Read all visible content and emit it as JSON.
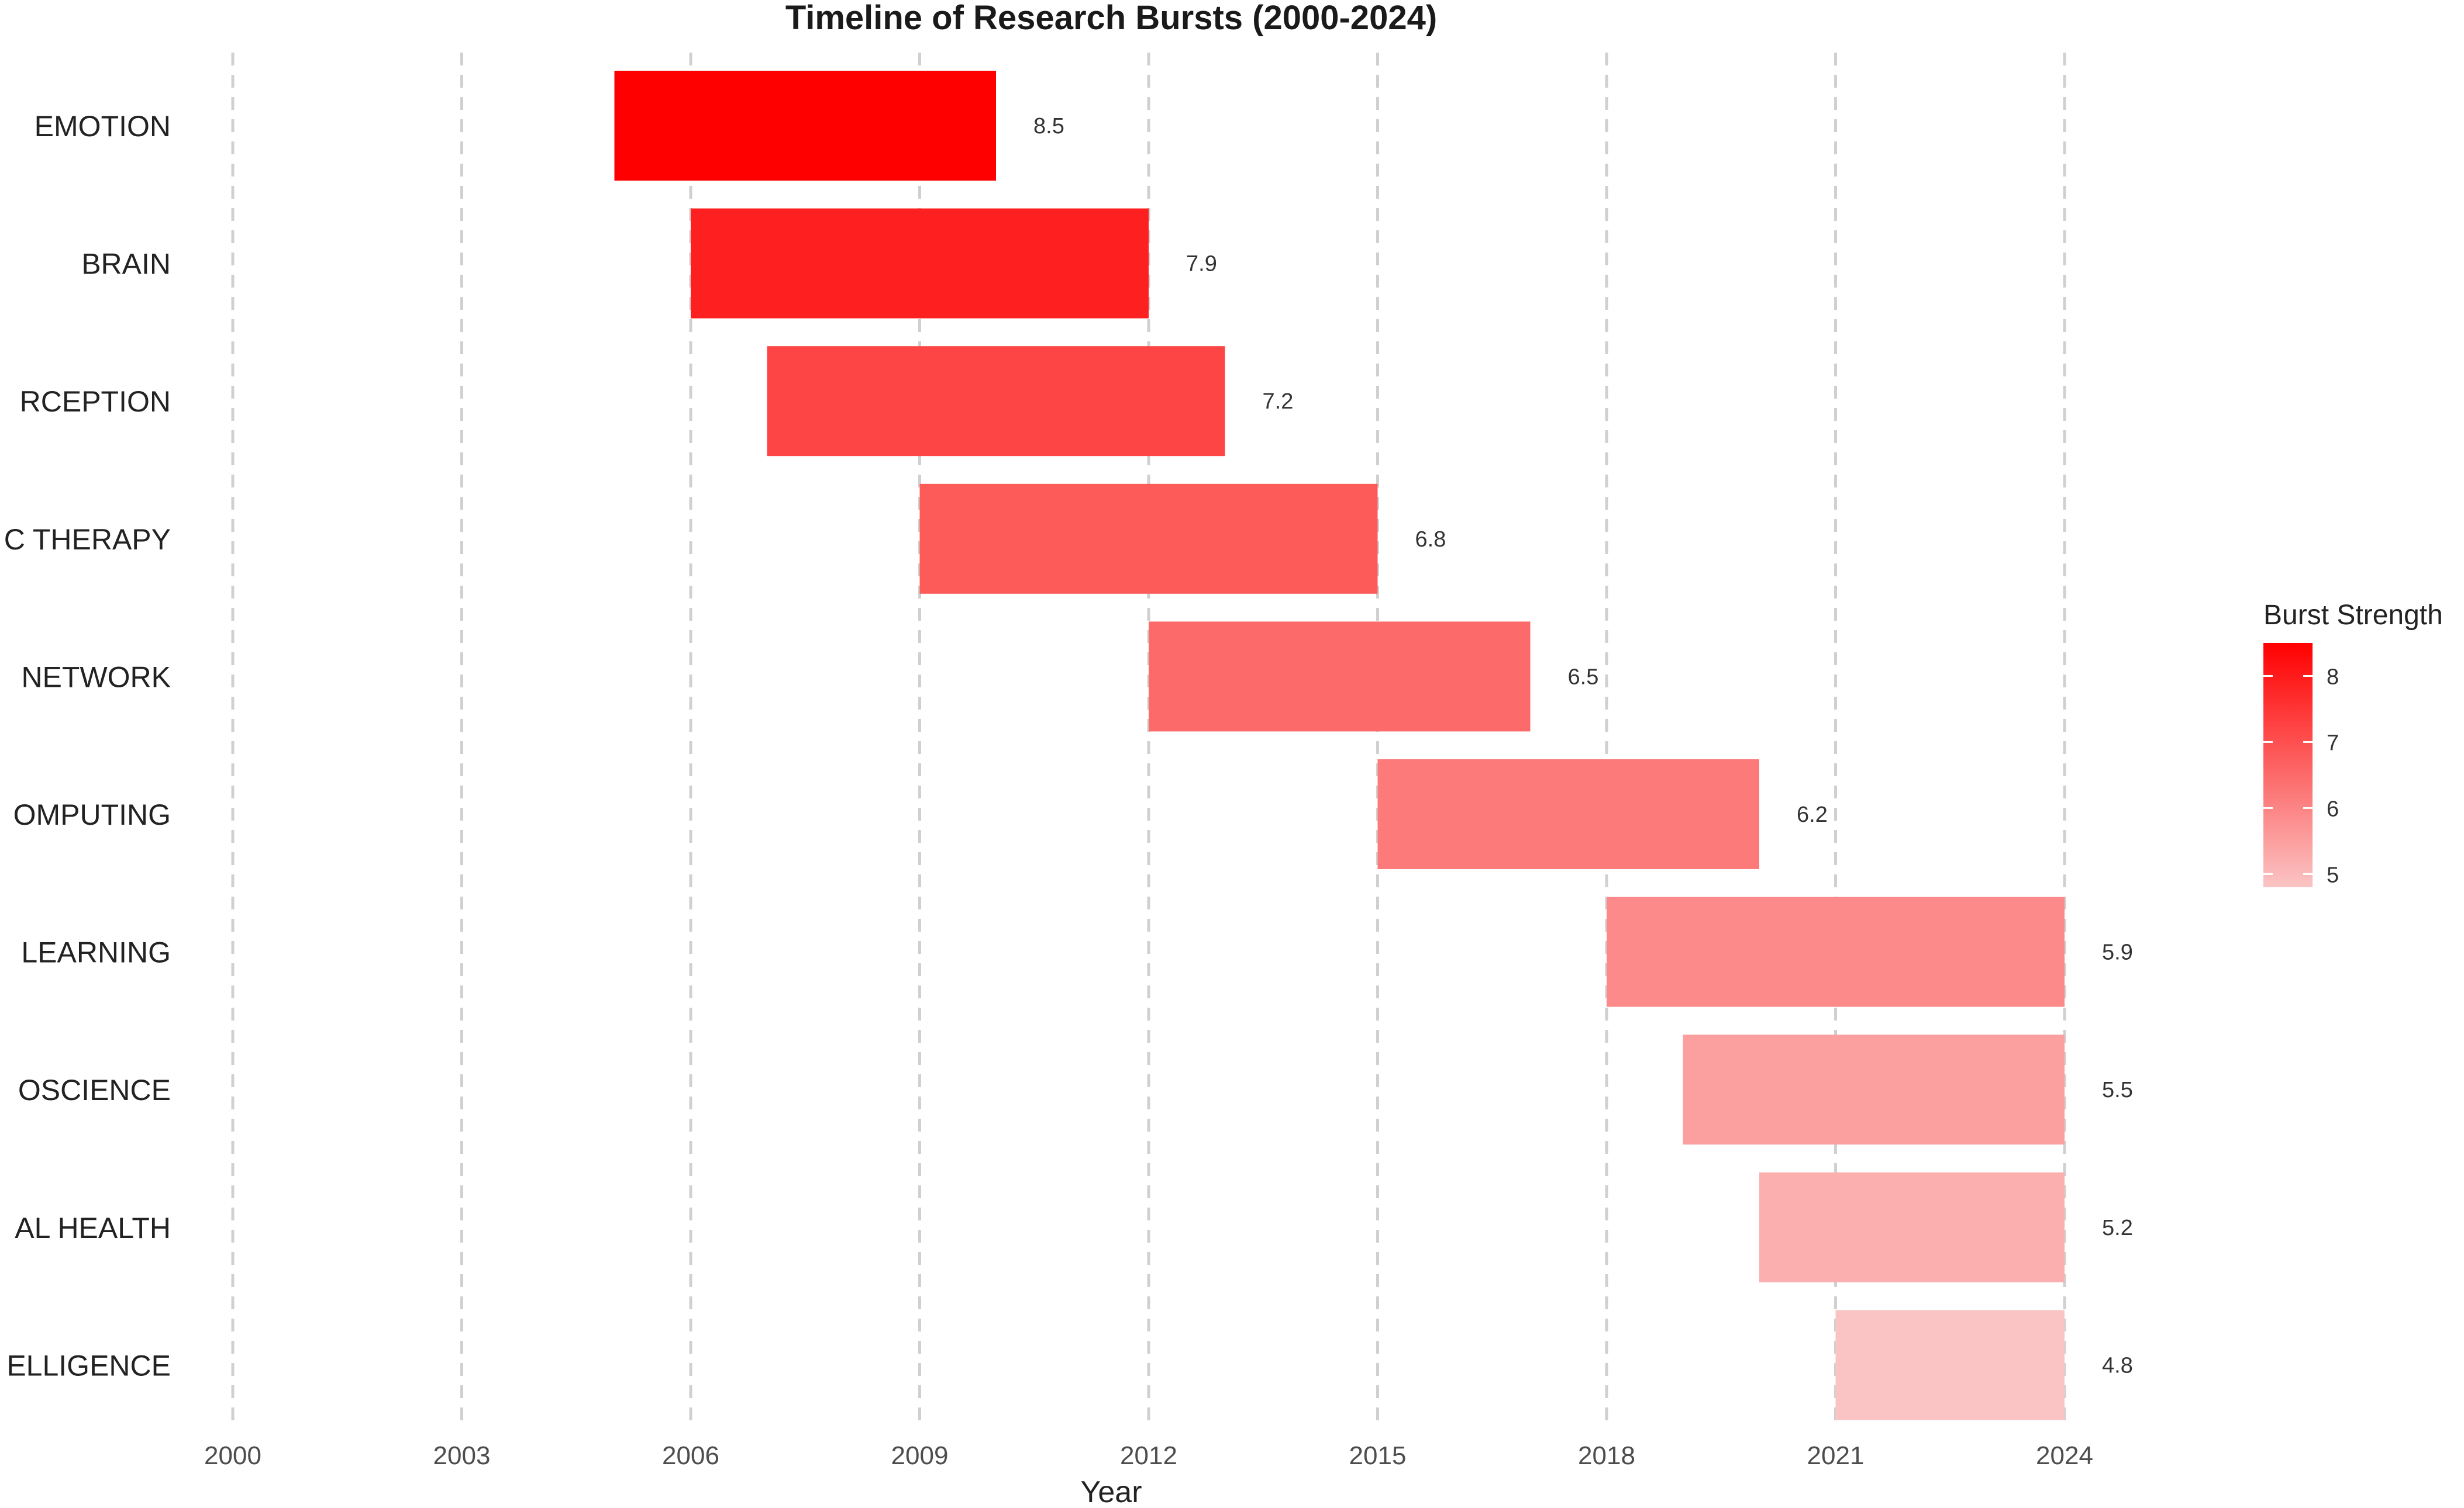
{
  "chart_data": {
    "type": "bar",
    "orientation": "horizontal-timeline",
    "title": "Timeline of Research Bursts (2000-2024)",
    "xlabel": "Year",
    "ylabel": "",
    "xlim": [
      2000,
      2024
    ],
    "x_ticks": [
      "2000",
      "2003",
      "2006",
      "2009",
      "2012",
      "2015",
      "2018",
      "2021",
      "2024"
    ],
    "grid": "vertical dashed",
    "categories": [
      "EMOTION",
      "BRAIN",
      "RCEPTION",
      "C THERAPY",
      "NETWORK",
      "OMPUTING",
      "LEARNING",
      "OSCIENCE",
      "AL HEALTH",
      "ELLIGENCE"
    ],
    "bursts": [
      {
        "keyword": "EMOTION",
        "start": 2005,
        "end": 2010,
        "strength": 8.5,
        "label": "8.5"
      },
      {
        "keyword": "BRAIN",
        "start": 2006,
        "end": 2012,
        "strength": 7.9,
        "label": "7.9"
      },
      {
        "keyword": "RCEPTION",
        "start": 2007,
        "end": 2013,
        "strength": 7.2,
        "label": "7.2"
      },
      {
        "keyword": "C THERAPY",
        "start": 2009,
        "end": 2015,
        "strength": 6.8,
        "label": "6.8"
      },
      {
        "keyword": "NETWORK",
        "start": 2012,
        "end": 2017,
        "strength": 6.5,
        "label": "6.5"
      },
      {
        "keyword": "OMPUTING",
        "start": 2015,
        "end": 2020,
        "strength": 6.2,
        "label": "6.2"
      },
      {
        "keyword": "LEARNING",
        "start": 2018,
        "end": 2024,
        "strength": 5.9,
        "label": "5.9"
      },
      {
        "keyword": "OSCIENCE",
        "start": 2019,
        "end": 2024,
        "strength": 5.5,
        "label": "5.5"
      },
      {
        "keyword": "AL HEALTH",
        "start": 2020,
        "end": 2024,
        "strength": 5.2,
        "label": "5.2"
      },
      {
        "keyword": "ELLIGENCE",
        "start": 2021,
        "end": 2024,
        "strength": 4.8,
        "label": "4.8"
      }
    ],
    "legend": {
      "title": "Burst Strength",
      "placement": "right",
      "range": [
        4.8,
        8.5
      ],
      "ticks": [
        "8",
        "7",
        "6",
        "5"
      ],
      "color_low": "#fbc4c4",
      "color_high": "#ff0000"
    }
  }
}
